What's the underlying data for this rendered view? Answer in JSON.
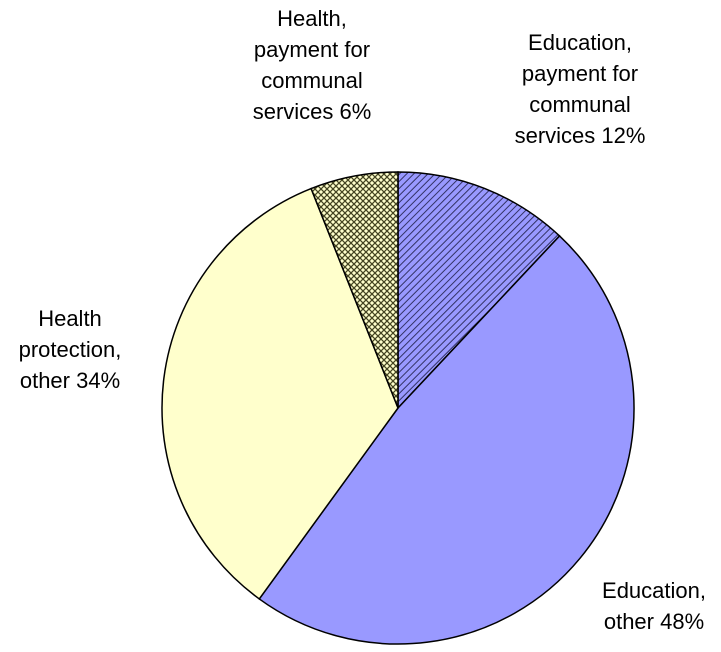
{
  "chart_data": {
    "type": "pie",
    "title": "",
    "start_angle_deg": 0,
    "direction": "clockwise",
    "slices": [
      {
        "label_lines": [
          "Education,",
          "payment for",
          "communal",
          "services 12%"
        ],
        "value": 12,
        "color": "#9999ff",
        "pattern": "diagonal-hatch"
      },
      {
        "label_lines": [
          "Education,",
          "other 48%"
        ],
        "value": 48,
        "color": "#9999ff",
        "pattern": "solid"
      },
      {
        "label_lines": [
          "Health",
          "protection,",
          "other 34%"
        ],
        "value": 34,
        "color": "#ffffcc",
        "pattern": "solid"
      },
      {
        "label_lines": [
          "Health,",
          "payment for",
          "communal",
          "services 6%"
        ],
        "value": 6,
        "color": "#ffffcc",
        "pattern": "cross-hatch"
      }
    ]
  }
}
